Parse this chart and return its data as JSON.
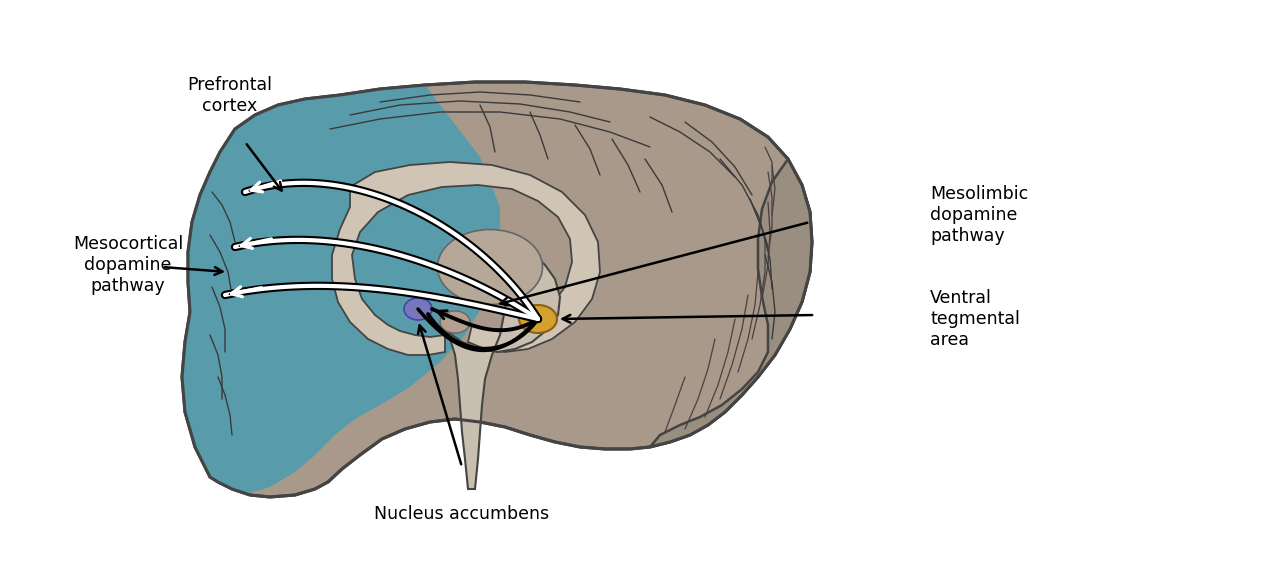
{
  "background_color": "#ffffff",
  "brain_fill_color": "#a8998a",
  "brain_outline_color": "#444444",
  "frontal_fill_color": "#4d9db0",
  "inner_brain_fill": "#c5b9a8",
  "corpus_fill": "#d0c5b5",
  "brainstem_fill": "#c8bfb0",
  "cerebellum_fill": "#9a8e80",
  "vta_color": "#d4a030",
  "nucleus_acc_color": "#7777bb",
  "label_fontsize": 12.5,
  "labels": {
    "prefrontal_cortex": "Prefrontal\ncortex",
    "mesocortical": "Mesocortical\ndopamine\npathway",
    "mesolimbic": "Mesolimbic\ndopamine\npathway",
    "nucleus_accumbens": "Nucleus accumbens",
    "ventral_tegmental": "Ventral\ntegmental\narea"
  }
}
